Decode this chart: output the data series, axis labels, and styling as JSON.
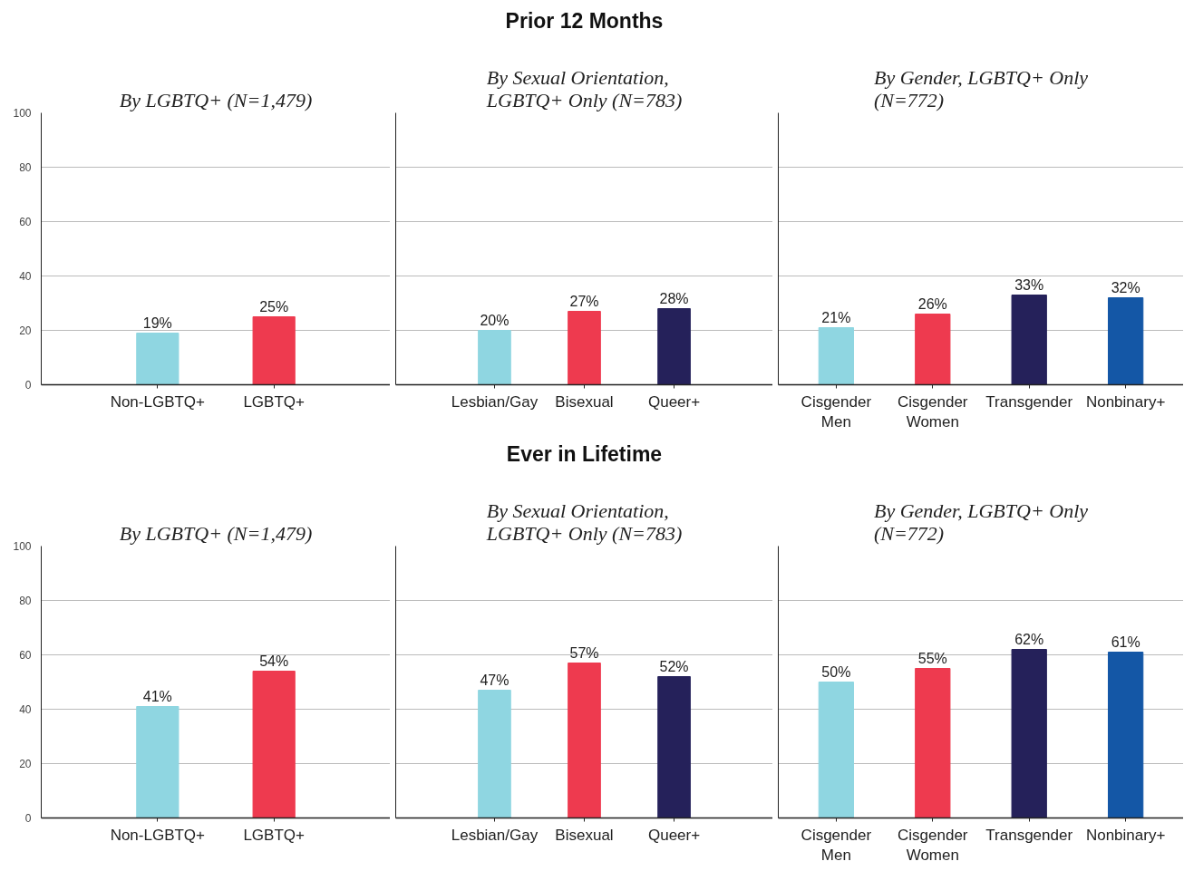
{
  "chart_data": [
    {
      "type": "bar",
      "subtitle": "By LGBTQ+ (N=1,479)",
      "categories": [
        "Non-LGBTQ+",
        "LGBTQ+"
      ],
      "values": [
        19,
        25
      ],
      "value_labels": [
        "19%",
        "25%"
      ],
      "colors": [
        "#8fd6e1",
        "#ee3a4f"
      ],
      "ylim": [
        0,
        100
      ],
      "yticks": [
        0,
        20,
        40,
        60,
        80,
        100
      ],
      "grid": "y"
    },
    {
      "type": "bar",
      "title": "Prior 12 Months",
      "subtitle": "By Sexual Orientation, LGBTQ+ Only (N=783)",
      "categories": [
        "Lesbian/Gay",
        "Bisexual",
        "Queer+"
      ],
      "values": [
        20,
        27,
        28
      ],
      "value_labels": [
        "20%",
        "27%",
        "28%"
      ],
      "colors": [
        "#8fd6e1",
        "#ee3a4f",
        "#25215a"
      ],
      "ylim": [
        0,
        100
      ],
      "yticks": [
        0,
        20,
        40,
        60,
        80,
        100
      ],
      "grid": "y",
      "tick_labels": "x"
    },
    {
      "type": "bar",
      "subtitle": "By Gender, LGBTQ+ Only (N=772)",
      "categories": [
        "Cisgender Men",
        "Cisgender Women",
        "Transgender",
        "Nonbinary+"
      ],
      "values": [
        21,
        26,
        33,
        32
      ],
      "value_labels": [
        "21%",
        "26%",
        "33%",
        "32%"
      ],
      "colors": [
        "#8fd6e1",
        "#ee3a4f",
        "#25215a",
        "#1457a6"
      ],
      "ylim": [
        0,
        100
      ],
      "yticks": [
        0,
        20,
        40,
        60,
        80,
        100
      ],
      "grid": "y",
      "tick_labels": "x"
    },
    {
      "type": "bar",
      "subtitle": "By LGBTQ+ (N=1,479)",
      "categories": [
        "Non-LGBTQ+",
        "LGBTQ+"
      ],
      "values": [
        41,
        54
      ],
      "value_labels": [
        "41%",
        "54%"
      ],
      "colors": [
        "#8fd6e1",
        "#ee3a4f"
      ],
      "ylim": [
        0,
        100
      ],
      "yticks": [
        0,
        20,
        40,
        60,
        80,
        100
      ],
      "grid": "y"
    },
    {
      "type": "bar",
      "title": "Ever in Lifetime",
      "subtitle": "By Sexual Orientation, LGBTQ+ Only (N=783)",
      "categories": [
        "Lesbian/Gay",
        "Bisexual",
        "Queer+"
      ],
      "values": [
        47,
        57,
        52
      ],
      "value_labels": [
        "47%",
        "57%",
        "52%"
      ],
      "colors": [
        "#8fd6e1",
        "#ee3a4f",
        "#25215a"
      ],
      "ylim": [
        0,
        100
      ],
      "yticks": [
        0,
        20,
        40,
        60,
        80,
        100
      ],
      "grid": "y",
      "tick_labels": "x"
    },
    {
      "type": "bar",
      "subtitle": "By Gender, LGBTQ+ Only (N=772)",
      "categories": [
        "Cisgender Men",
        "Cisgender Women",
        "Transgender",
        "Nonbinary+"
      ],
      "values": [
        50,
        55,
        62,
        61
      ],
      "value_labels": [
        "50%",
        "55%",
        "62%",
        "61%"
      ],
      "colors": [
        "#8fd6e1",
        "#ee3a4f",
        "#25215a",
        "#1457a6"
      ],
      "ylim": [
        0,
        100
      ],
      "yticks": [
        0,
        20,
        40,
        60,
        80,
        100
      ],
      "grid": "y",
      "tick_labels": "x"
    }
  ]
}
